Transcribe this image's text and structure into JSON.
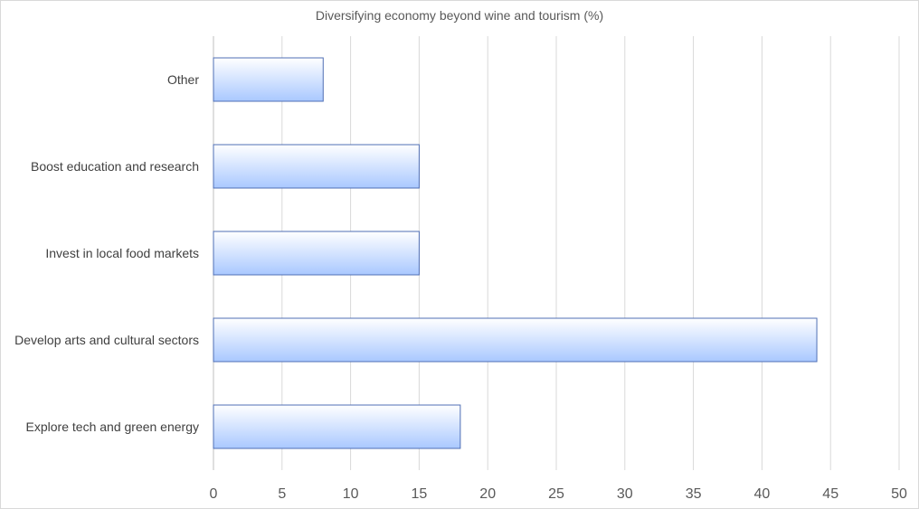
{
  "chart_data": {
    "type": "bar",
    "orientation": "horizontal",
    "title": "Diversifying economy beyond wine and tourism (%)",
    "categories": [
      "Other",
      "Boost education and research",
      "Invest in local food markets",
      "Develop arts and cultural sectors",
      "Explore tech and green energy"
    ],
    "values": [
      8,
      15,
      15,
      44,
      18
    ],
    "xlim": [
      0,
      50
    ],
    "xticks": [
      0,
      5,
      10,
      15,
      20,
      25,
      30,
      35,
      40,
      45,
      50
    ],
    "grid": true,
    "legend": "none",
    "colors": {
      "bar_top": "#ffffff",
      "bar_bottom": "#a9c8ff",
      "bar_border": "#4f6fb5",
      "grid": "#d9d9d9",
      "axis": "#bfbfbf"
    }
  }
}
